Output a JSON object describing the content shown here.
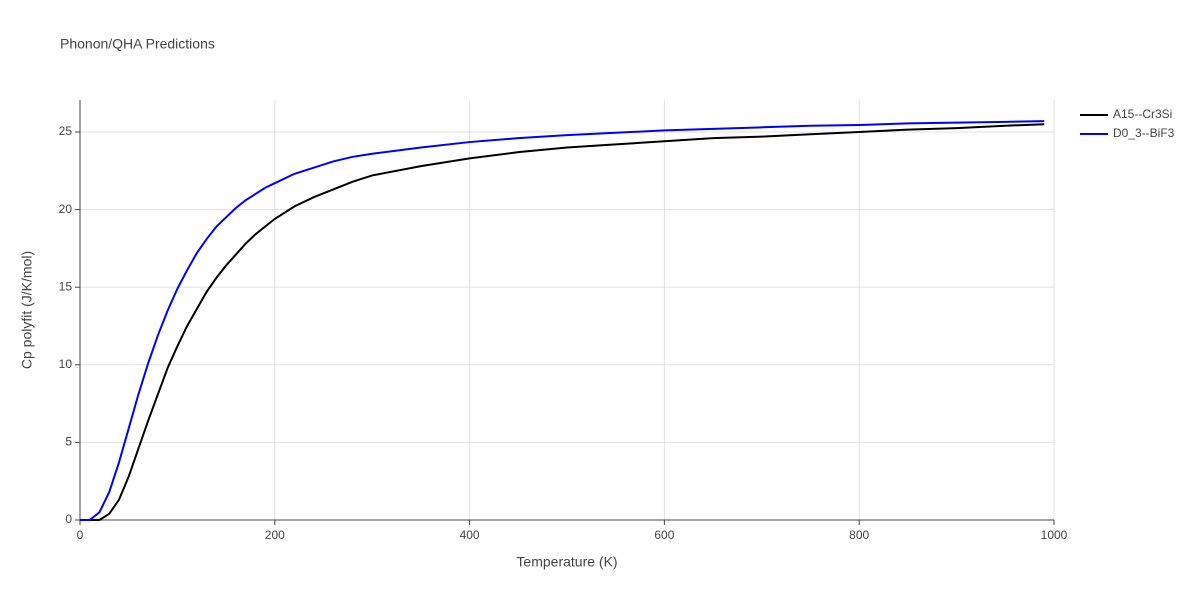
{
  "chart_data": {
    "type": "line",
    "title": "Phonon/QHA Predictions",
    "x_label": "Temperature (K)",
    "y_label": "Cp polyfit (J/K/mol)",
    "x": [
      0,
      10,
      20,
      30,
      40,
      50,
      60,
      70,
      80,
      90,
      100,
      110,
      120,
      130,
      140,
      150,
      160,
      170,
      180,
      190,
      200,
      220,
      240,
      260,
      280,
      300,
      350,
      400,
      450,
      500,
      550,
      600,
      650,
      700,
      750,
      800,
      850,
      900,
      950,
      990
    ],
    "series": [
      {
        "name": "A15--Cr3Si",
        "color": "#000000",
        "values": [
          0,
          0,
          0,
          0.4,
          1.3,
          2.8,
          4.6,
          6.4,
          8.1,
          9.8,
          11.2,
          12.5,
          13.6,
          14.7,
          15.6,
          16.4,
          17.1,
          17.8,
          18.4,
          18.9,
          19.4,
          20.2,
          20.8,
          21.3,
          21.8,
          22.2,
          22.8,
          23.3,
          23.7,
          24.0,
          24.2,
          24.4,
          24.6,
          24.7,
          24.85,
          25.0,
          25.15,
          25.25,
          25.4,
          25.5
        ]
      },
      {
        "name": "D0_3--BiF3",
        "color": "#0000ff",
        "values": [
          0,
          0,
          0.5,
          1.8,
          3.7,
          5.9,
          8.1,
          10.1,
          11.9,
          13.5,
          14.9,
          16.1,
          17.2,
          18.1,
          18.9,
          19.5,
          20.1,
          20.6,
          21.0,
          21.4,
          21.7,
          22.3,
          22.7,
          23.1,
          23.4,
          23.6,
          24.0,
          24.35,
          24.6,
          24.8,
          24.95,
          25.1,
          25.2,
          25.3,
          25.4,
          25.45,
          25.55,
          25.6,
          25.65,
          25.7
        ]
      }
    ],
    "xlim": [
      0,
      1000
    ],
    "xticks": [
      0,
      200,
      400,
      600,
      800,
      1000
    ],
    "ylim": [
      0,
      27.06
    ],
    "yticks": [
      0,
      5,
      10,
      15,
      20,
      25
    ],
    "grid": true,
    "legend": "right"
  }
}
